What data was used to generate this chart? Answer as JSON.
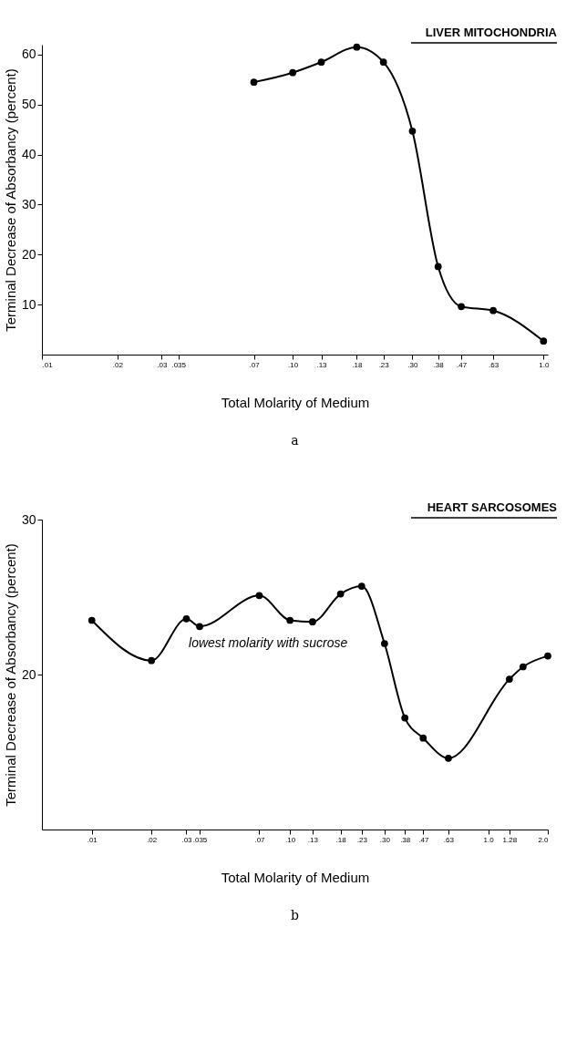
{
  "chart_data": [
    {
      "type": "line",
      "title": "LIVER MITOCHONDRIA",
      "xlabel": "Total Molarity of Medium",
      "ylabel": "Terminal Decrease of Absorbancy (percent)",
      "log": "x",
      "marker": "circle",
      "line_style": "solid",
      "grid": false,
      "x": [
        0.07,
        0.1,
        0.13,
        0.18,
        0.23,
        0.3,
        0.38,
        0.47,
        0.63,
        1.0
      ],
      "series": [
        {
          "color": "#000000",
          "values": [
            54.5,
            56.4,
            58.5,
            61.5,
            58.5,
            44.7,
            17.6,
            9.6,
            8.8,
            2.7
          ]
        }
      ],
      "xlim": [
        0.01,
        1.04
      ],
      "ylim": [
        0,
        62
      ],
      "xticks": [
        {
          "value": 0.01,
          "label": ".01"
        },
        {
          "value": 0.02,
          "label": ".02"
        },
        {
          "value": 0.03,
          "label": ".03"
        },
        {
          "value": 0.035,
          "label": ".035"
        },
        {
          "value": 0.07,
          "label": ".07"
        },
        {
          "value": 0.1,
          "label": ".10"
        },
        {
          "value": 0.13,
          "label": ".13"
        },
        {
          "value": 0.18,
          "label": ".18"
        },
        {
          "value": 0.23,
          "label": ".23"
        },
        {
          "value": 0.3,
          "label": ".30"
        },
        {
          "value": 0.38,
          "label": ".38"
        },
        {
          "value": 0.47,
          "label": ".47"
        },
        {
          "value": 0.63,
          "label": ".63"
        },
        {
          "value": 1.0,
          "label": "1.0"
        }
      ],
      "yticks": [
        10,
        20,
        30,
        40,
        50,
        60
      ],
      "annotations": [
        "a"
      ]
    },
    {
      "type": "line",
      "title": "HEART SARCOSOMES",
      "xlabel": "Total Molarity of Medium",
      "ylabel": "Terminal Decrease of Absorbancy (percent)",
      "log": "x",
      "marker": "circle",
      "line_style": "solid",
      "grid": false,
      "x": [
        0.01,
        0.02,
        0.03,
        0.035,
        0.07,
        0.1,
        0.13,
        0.18,
        0.23,
        0.3,
        0.38,
        0.47,
        0.63,
        1.28,
        1.5,
        2.0
      ],
      "series": [
        {
          "color": "#000000",
          "values": [
            23.5,
            20.9,
            23.6,
            23.1,
            25.1,
            23.5,
            23.4,
            25.2,
            25.7,
            22.0,
            17.2,
            15.9,
            14.6,
            19.7,
            20.5,
            21.2
          ]
        }
      ],
      "xlim": [
        0.0056,
        2.0
      ],
      "ylim": [
        10,
        30
      ],
      "xticks": [
        {
          "value": 0.01,
          "label": ".01"
        },
        {
          "value": 0.02,
          "label": ".02"
        },
        {
          "value": 0.03,
          "label": ".03"
        },
        {
          "value": 0.035,
          "label": ".035"
        },
        {
          "value": 0.07,
          "label": ".07"
        },
        {
          "value": 0.1,
          "label": ".10"
        },
        {
          "value": 0.13,
          "label": ".13"
        },
        {
          "value": 0.18,
          "label": ".18"
        },
        {
          "value": 0.23,
          "label": ".23"
        },
        {
          "value": 0.3,
          "label": ".30"
        },
        {
          "value": 0.38,
          "label": ".38"
        },
        {
          "value": 0.47,
          "label": ".47"
        },
        {
          "value": 0.63,
          "label": ".63"
        },
        {
          "value": 1.0,
          "label": "1.0"
        },
        {
          "value": 1.28,
          "label": "1.28"
        },
        {
          "value": 2.0,
          "label": "2.0"
        }
      ],
      "yticks": [
        20,
        30
      ],
      "annotations": [
        {
          "text": "lowest molarity with sucrose",
          "x": 0.035,
          "y": 23.1
        },
        "b"
      ]
    }
  ]
}
